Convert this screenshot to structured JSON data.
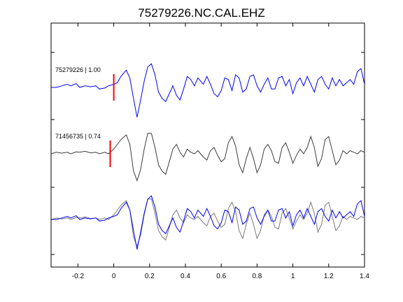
{
  "chart_data": {
    "type": "line",
    "title": "75279226.NC.CAL.EHZ",
    "xlabel": "",
    "ylabel": "",
    "xlim": [
      -0.35,
      1.4
    ],
    "xticks": [
      -0.2,
      0,
      0.2,
      0.4,
      0.6,
      0.8,
      1,
      1.2,
      1.4
    ],
    "xtick_labels": [
      "-0.2",
      "0",
      "0.2",
      "0.4",
      "0.6",
      "0.8",
      "1",
      "1.2",
      "1.4"
    ],
    "grid": false,
    "legend": "none",
    "colors": {
      "trace_blue": "#0000ff",
      "trace_gray": "#3c3c3c",
      "overlay_gray": "#7a7a7a",
      "pick": "#ff0000"
    },
    "panels": [
      {
        "label": "75279226 | 1.00",
        "color": "#0000ff",
        "pick_x": 0.0,
        "x": [
          -0.35,
          -0.32,
          -0.29,
          -0.26,
          -0.24,
          -0.21,
          -0.19,
          -0.16,
          -0.13,
          -0.1,
          -0.08,
          -0.05,
          -0.03,
          0,
          0.02,
          0.04,
          0.07,
          0.09,
          0.11,
          0.13,
          0.15,
          0.17,
          0.19,
          0.21,
          0.23,
          0.25,
          0.27,
          0.29,
          0.31,
          0.33,
          0.35,
          0.37,
          0.39,
          0.41,
          0.43,
          0.45,
          0.47,
          0.5,
          0.52,
          0.54,
          0.56,
          0.58,
          0.6,
          0.62,
          0.64,
          0.66,
          0.68,
          0.7,
          0.72,
          0.74,
          0.76,
          0.78,
          0.8,
          0.82,
          0.84,
          0.86,
          0.88,
          0.9,
          0.92,
          0.94,
          0.96,
          0.98,
          1,
          1.02,
          1.04,
          1.06,
          1.08,
          1.1,
          1.12,
          1.14,
          1.16,
          1.18,
          1.2,
          1.22,
          1.24,
          1.26,
          1.28,
          1.3,
          1.32,
          1.34,
          1.36,
          1.38,
          1.4
        ],
        "y": [
          0,
          0,
          0.05,
          0.1,
          0.05,
          0.12,
          0,
          0.05,
          0.02,
          0.05,
          -0.05,
          -0.02,
          0.05,
          0.1,
          0.15,
          0.35,
          0.55,
          0.3,
          -0.35,
          -0.95,
          -0.4,
          0.2,
          0.65,
          0.75,
          0.4,
          -0.15,
          -0.35,
          -0.45,
          -0.2,
          0.05,
          -0.25,
          -0.4,
          -0.05,
          0.35,
          0.25,
          0.05,
          0.3,
          0.1,
          0.35,
          0.1,
          -0.2,
          -0.3,
          -0.1,
          0.3,
          0.25,
          -0.1,
          0.4,
          0.3,
          -0.15,
          -0.05,
          0.35,
          0.4,
          0.05,
          -0.15,
          0.1,
          0.3,
          -0.05,
          -0.05,
          0.3,
          0.35,
          0.05,
          0.25,
          -0.2,
          0.15,
          0.3,
          0.05,
          0.35,
          0.1,
          -0.15,
          0.25,
          0.35,
          0.1,
          -0.05,
          0.3,
          0.05,
          0.25,
          0.05,
          0.15,
          0.25,
          0.1,
          0.5,
          0.6,
          0.1
        ]
      },
      {
        "label": "71456735 | 0.74",
        "color": "#3c3c3c",
        "pick_x": -0.02,
        "x": [
          -0.35,
          -0.32,
          -0.29,
          -0.26,
          -0.24,
          -0.21,
          -0.19,
          -0.16,
          -0.13,
          -0.1,
          -0.08,
          -0.05,
          -0.03,
          0,
          0.02,
          0.04,
          0.07,
          0.09,
          0.11,
          0.13,
          0.15,
          0.17,
          0.19,
          0.21,
          0.23,
          0.25,
          0.27,
          0.29,
          0.31,
          0.33,
          0.35,
          0.37,
          0.39,
          0.41,
          0.43,
          0.45,
          0.47,
          0.5,
          0.52,
          0.54,
          0.56,
          0.58,
          0.6,
          0.62,
          0.64,
          0.66,
          0.68,
          0.7,
          0.72,
          0.74,
          0.76,
          0.78,
          0.8,
          0.82,
          0.84,
          0.86,
          0.88,
          0.9,
          0.92,
          0.94,
          0.96,
          0.98,
          1,
          1.02,
          1.04,
          1.06,
          1.08,
          1.1,
          1.12,
          1.14,
          1.16,
          1.18,
          1.2,
          1.22,
          1.24,
          1.26,
          1.28,
          1.3,
          1.32,
          1.34,
          1.36,
          1.38,
          1.4
        ],
        "y": [
          0,
          0.05,
          0.02,
          0.05,
          0,
          0.06,
          0.05,
          0.08,
          0.03,
          0.05,
          0,
          0.05,
          0,
          0.15,
          0.3,
          0.45,
          0.6,
          0.3,
          -0.55,
          -0.85,
          -0.5,
          0.15,
          0.65,
          0.65,
          0.2,
          -0.35,
          -0.55,
          -0.65,
          -0.25,
          0.15,
          0.3,
          0.05,
          -0.1,
          0.15,
          0.05,
          0,
          0.1,
          -0.1,
          -0.2,
          0.1,
          0.2,
          -0.05,
          -0.25,
          -0.15,
          0.35,
          0.55,
          0.25,
          -0.35,
          -0.6,
          -0.15,
          0.2,
          -0.15,
          -0.6,
          -0.35,
          0.15,
          0.3,
          0.1,
          -0.25,
          -0.3,
          0.2,
          0.35,
          0.05,
          -0.3,
          -0.05,
          0.15,
          0,
          0.2,
          0.55,
          0.2,
          -0.4,
          -0.15,
          0.45,
          0.55,
          0.1,
          -0.35,
          -0.2,
          0.1,
          0,
          0.1,
          0.05,
          0,
          0.1,
          0.05
        ]
      },
      {
        "label": "",
        "overlay": true,
        "series_refs": [
          0,
          1
        ]
      }
    ]
  }
}
